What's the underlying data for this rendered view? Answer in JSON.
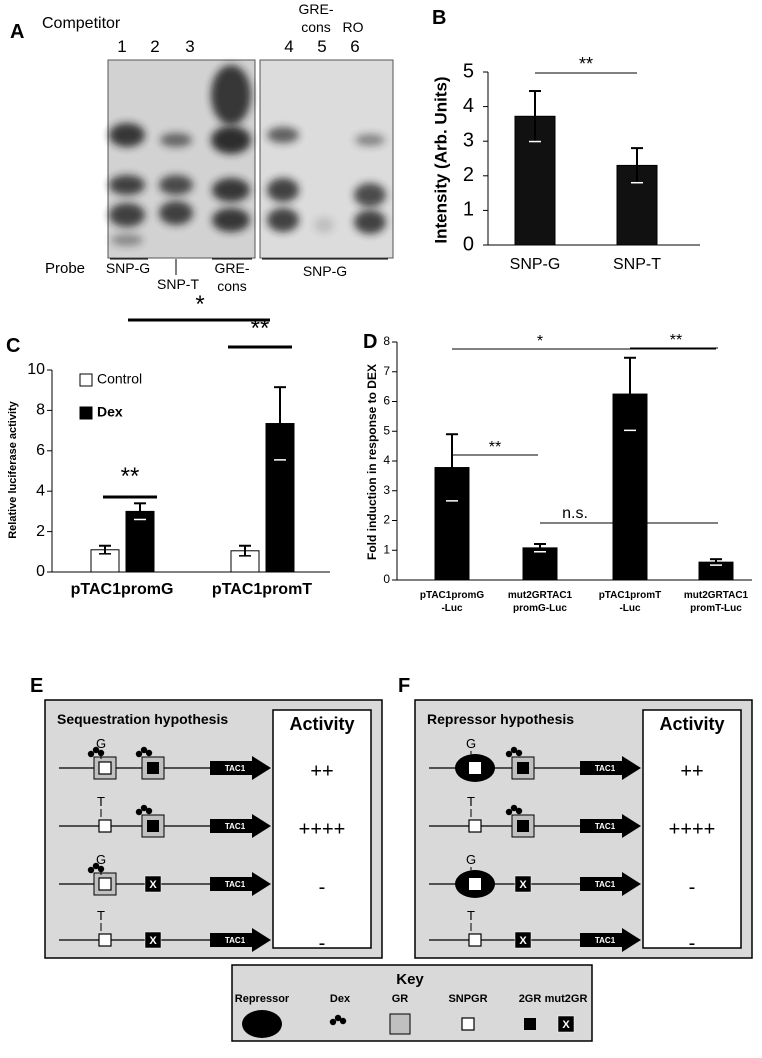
{
  "gel": {
    "panel": "A",
    "competitor_label": "Competitor",
    "lanes": [
      "1",
      "2",
      "3",
      "4",
      "5",
      "6"
    ],
    "competitor_names": [
      [
        "GRE-",
        "cons"
      ],
      [
        "RO"
      ]
    ],
    "probe_label": "Probe",
    "probes": [
      "SNP-G",
      "SNP-T",
      [
        "GRE-",
        "cons"
      ],
      "SNP-G"
    ]
  },
  "chart_data": [
    {
      "panel": "B",
      "type": "bar",
      "ylabel": "Intensity (Arb. Units)",
      "categories": [
        "SNP-G",
        "SNP-T"
      ],
      "values": [
        3.72,
        2.3
      ],
      "errors": [
        0.73,
        0.5
      ],
      "color": "#111111",
      "ylim": [
        0,
        5
      ],
      "yticks": [
        0,
        1,
        2,
        3,
        4,
        5
      ],
      "annotations": [
        "**"
      ]
    },
    {
      "panel": "C",
      "type": "bar",
      "ylabel": "Relative luciferase activity",
      "categories": [
        "pTAC1promG",
        "pTAC1promT"
      ],
      "series": [
        {
          "name": "Control",
          "color": "#ffffff",
          "values": [
            1.1,
            1.05
          ],
          "errors": [
            0.2,
            0.25
          ]
        },
        {
          "name": "Dex",
          "color": "#000000",
          "values": [
            3.0,
            7.35
          ],
          "errors": [
            0.4,
            1.8
          ]
        }
      ],
      "ylim": [
        0,
        10
      ],
      "yticks": [
        0,
        2,
        4,
        6,
        8,
        10
      ],
      "annotations": [
        "**",
        "**",
        "*"
      ]
    },
    {
      "panel": "D",
      "type": "bar",
      "ylabel": "Fold induction in response to DEX",
      "categories": [
        [
          "pTAC1promG",
          "-Luc"
        ],
        [
          "mut2GRTAC1",
          "promG-Luc"
        ],
        [
          "pTAC1promT",
          "-Luc"
        ],
        [
          "mut2GRTAC1",
          "promT-Luc"
        ]
      ],
      "values": [
        3.78,
        1.08,
        6.25,
        0.6
      ],
      "errors": [
        1.12,
        0.13,
        1.22,
        0.1
      ],
      "color": "#000000",
      "ylim": [
        0,
        8
      ],
      "yticks": [
        0,
        1,
        2,
        3,
        4,
        5,
        6,
        7,
        8
      ],
      "annotations": [
        "*",
        "**",
        "**",
        "n.s."
      ]
    }
  ],
  "diagrams": [
    {
      "panel": "E",
      "title": "Sequestration hypothesis",
      "activity_header": "Activity",
      "rows": [
        {
          "allele": "G",
          "gene": "TAC1",
          "activity": "++"
        },
        {
          "allele": "T",
          "gene": "TAC1",
          "activity": "++++"
        },
        {
          "allele": "G",
          "mutant": "X",
          "gene": "TAC1",
          "activity": "-"
        },
        {
          "allele": "T",
          "mutant": "X",
          "gene": "TAC1",
          "activity": "-"
        }
      ]
    },
    {
      "panel": "F",
      "title": "Repressor hypothesis",
      "activity_header": "Activity",
      "rows": [
        {
          "allele": "G",
          "gene": "TAC1",
          "activity": "++"
        },
        {
          "allele": "T",
          "gene": "TAC1",
          "activity": "++++"
        },
        {
          "allele": "G",
          "mutant": "X",
          "gene": "TAC1",
          "activity": "-"
        },
        {
          "allele": "T",
          "mutant": "X",
          "gene": "TAC1",
          "activity": "-"
        }
      ]
    }
  ],
  "key": {
    "title": "Key",
    "items": [
      "Repressor",
      "Dex",
      "GR",
      "SNPGR",
      "2GR",
      "mut2GR"
    ],
    "mutant_symbol": "X"
  }
}
